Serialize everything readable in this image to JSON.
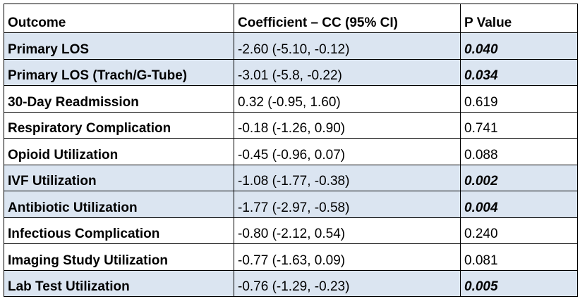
{
  "table": {
    "headers": [
      "Outcome",
      "Coefficient – CC (95% CI)",
      "P Value"
    ],
    "highlight_color": "#dbe5f1",
    "rows": [
      {
        "outcome": "Primary LOS",
        "coefficient": "-2.60 (-5.10, -0.12)",
        "p_value": "0.040",
        "significant": true
      },
      {
        "outcome": "Primary LOS (Trach/G-Tube)",
        "coefficient": "-3.01 (-5.8, -0.22)",
        "p_value": "0.034",
        "significant": true
      },
      {
        "outcome": "30-Day Readmission",
        "coefficient": "0.32 (-0.95, 1.60)",
        "p_value": "0.619",
        "significant": false
      },
      {
        "outcome": "Respiratory Complication",
        "coefficient": "-0.18 (-1.26, 0.90)",
        "p_value": "0.741",
        "significant": false
      },
      {
        "outcome": "Opioid Utilization",
        "coefficient": "-0.45 (-0.96, 0.07)",
        "p_value": "0.088",
        "significant": false
      },
      {
        "outcome": "IVF Utilization",
        "coefficient": "-1.08 (-1.77, -0.38)",
        "p_value": "0.002",
        "significant": true
      },
      {
        "outcome": "Antibiotic Utilization",
        "coefficient": "-1.77 (-2.97, -0.58)",
        "p_value": "0.004",
        "significant": true
      },
      {
        "outcome": "Infectious Complication",
        "coefficient": "-0.80 (-2.12, 0.54)",
        "p_value": "0.240",
        "significant": false
      },
      {
        "outcome": "Imaging Study Utilization",
        "coefficient": "-0.77 (-1.63, 0.09)",
        "p_value": "0.081",
        "significant": false
      },
      {
        "outcome": "Lab Test Utilization",
        "coefficient": "-0.76 (-1.29, -0.23)",
        "p_value": "0.005",
        "significant": true
      }
    ]
  }
}
